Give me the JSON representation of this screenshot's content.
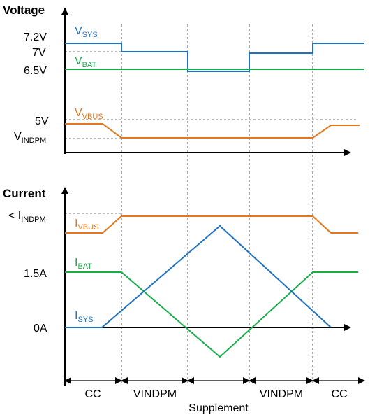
{
  "sections": {
    "voltage_heading": "Voltage",
    "current_heading": "Current"
  },
  "voltage_axis": {
    "ticks": [
      {
        "main": "7.2V",
        "sub": ""
      },
      {
        "main": "7V",
        "sub": ""
      },
      {
        "main": "6.5V",
        "sub": ""
      },
      {
        "main": "5V",
        "sub": ""
      },
      {
        "main": "V",
        "sub": "INDPM"
      }
    ]
  },
  "current_axis": {
    "ticks": [
      {
        "main": "< I",
        "sub": "INDPM"
      },
      {
        "main": "1.5A",
        "sub": ""
      },
      {
        "main": "0A",
        "sub": ""
      }
    ]
  },
  "labels": {
    "vsys": {
      "main": "V",
      "sub": "SYS"
    },
    "vbat": {
      "main": "V",
      "sub": "BAT"
    },
    "vvbus": {
      "main": "V",
      "sub": "VBUS"
    },
    "ivbus": {
      "main": "I",
      "sub": "VBUS"
    },
    "ibat": {
      "main": "I",
      "sub": "BAT"
    },
    "isys": {
      "main": "I",
      "sub": "SYS"
    }
  },
  "modes": [
    "CC",
    "VINDPM",
    "Supplement",
    "VINDPM",
    "CC"
  ],
  "colors": {
    "vsys": "#1f72bf",
    "vbat": "#1aab4b",
    "vvbus": "#e5761b",
    "axis": "#000000",
    "guide": "#555555"
  }
}
